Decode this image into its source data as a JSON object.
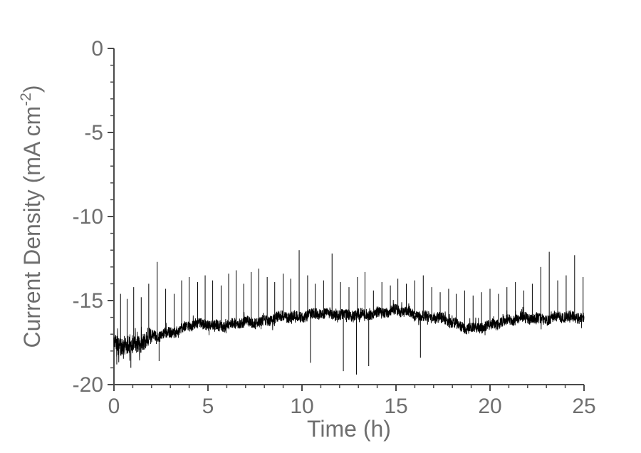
{
  "chart_data": {
    "type": "line",
    "title": "",
    "xlabel": "Time (h)",
    "ylabel": "Current Density (mA cm⁻²)",
    "ylabel_parts": {
      "main": "Current Density (mA cm",
      "sup": "-2",
      "close": ")"
    },
    "xlim": [
      0,
      25
    ],
    "ylim": [
      -20,
      0
    ],
    "xticks": [
      0,
      5,
      10,
      15,
      20,
      25
    ],
    "yticks": [
      0,
      -5,
      -10,
      -15,
      -20
    ],
    "x_minor_step": 1,
    "y_minor_step": 1,
    "grid": false,
    "legend": "none",
    "axis_color": "#4a4a4a",
    "label_color": "#6e6e6e",
    "line_color": "#000000",
    "series": [
      {
        "name": "current-density-trace",
        "baseline": {
          "x": [
            0,
            0.3,
            0.8,
            1.2,
            1.8,
            2.5,
            3.2,
            4,
            5,
            6,
            7,
            8,
            9,
            10,
            11,
            12,
            13,
            14,
            15,
            16,
            17,
            18,
            18.7,
            19.3,
            20,
            20.7,
            21.5,
            22.5,
            23.5,
            24.5,
            25
          ],
          "y": [
            -17.6,
            -17.9,
            -17.5,
            -17.6,
            -17.2,
            -17.1,
            -16.8,
            -16.5,
            -16.4,
            -16.5,
            -16.3,
            -16.2,
            -16.0,
            -15.9,
            -15.8,
            -15.8,
            -15.9,
            -15.7,
            -15.6,
            -15.8,
            -16.0,
            -16.3,
            -16.6,
            -16.7,
            -16.5,
            -16.2,
            -16.1,
            -16.1,
            -16.0,
            -16.0,
            -15.9
          ]
        },
        "noise": {
          "amplitude": 0.33,
          "early_amplitude": 0.55,
          "early_until": 2.0
        },
        "spikes_up": [
          [
            0.35,
            -14.6
          ],
          [
            0.7,
            -14.9
          ],
          [
            1.05,
            -14.2
          ],
          [
            1.45,
            -14.8
          ],
          [
            1.85,
            -14.0
          ],
          [
            2.3,
            -12.7
          ],
          [
            2.75,
            -14.3
          ],
          [
            3.2,
            -14.6
          ],
          [
            3.6,
            -13.8
          ],
          [
            4.0,
            -13.6
          ],
          [
            4.45,
            -13.9
          ],
          [
            4.85,
            -13.5
          ],
          [
            5.25,
            -13.8
          ],
          [
            5.7,
            -14.1
          ],
          [
            6.1,
            -13.4
          ],
          [
            6.5,
            -13.2
          ],
          [
            6.9,
            -14.0
          ],
          [
            7.3,
            -13.3
          ],
          [
            7.7,
            -13.1
          ],
          [
            8.15,
            -13.6
          ],
          [
            8.55,
            -13.9
          ],
          [
            9.0,
            -13.4
          ],
          [
            9.4,
            -13.7
          ],
          [
            9.85,
            -12.0
          ],
          [
            10.3,
            -13.5
          ],
          [
            10.7,
            -14.0
          ],
          [
            11.15,
            -13.8
          ],
          [
            11.6,
            -12.2
          ],
          [
            12.05,
            -13.9
          ],
          [
            12.5,
            -14.2
          ],
          [
            12.95,
            -13.6
          ],
          [
            13.35,
            -13.3
          ],
          [
            13.8,
            -14.4
          ],
          [
            14.25,
            -13.9
          ],
          [
            14.7,
            -14.1
          ],
          [
            15.1,
            -13.7
          ],
          [
            15.55,
            -14.0
          ],
          [
            16.0,
            -13.8
          ],
          [
            16.45,
            -13.5
          ],
          [
            16.9,
            -14.2
          ],
          [
            17.35,
            -14.5
          ],
          [
            17.8,
            -14.3
          ],
          [
            18.2,
            -14.6
          ],
          [
            18.65,
            -14.4
          ],
          [
            19.1,
            -14.7
          ],
          [
            19.55,
            -14.5
          ],
          [
            20.0,
            -14.3
          ],
          [
            20.45,
            -14.6
          ],
          [
            20.9,
            -14.2
          ],
          [
            21.35,
            -13.9
          ],
          [
            21.8,
            -14.4
          ],
          [
            22.25,
            -14.0
          ],
          [
            22.7,
            -13.0
          ],
          [
            23.15,
            -12.1
          ],
          [
            23.6,
            -13.8
          ],
          [
            24.05,
            -13.5
          ],
          [
            24.5,
            -12.3
          ],
          [
            24.95,
            -13.6
          ]
        ],
        "spikes_down": [
          [
            0.15,
            -18.8
          ],
          [
            0.9,
            -19.0
          ],
          [
            2.4,
            -18.6
          ],
          [
            10.45,
            -18.7
          ],
          [
            12.2,
            -19.2
          ],
          [
            12.9,
            -19.4
          ],
          [
            13.55,
            -18.9
          ],
          [
            16.3,
            -18.4
          ]
        ]
      }
    ]
  }
}
